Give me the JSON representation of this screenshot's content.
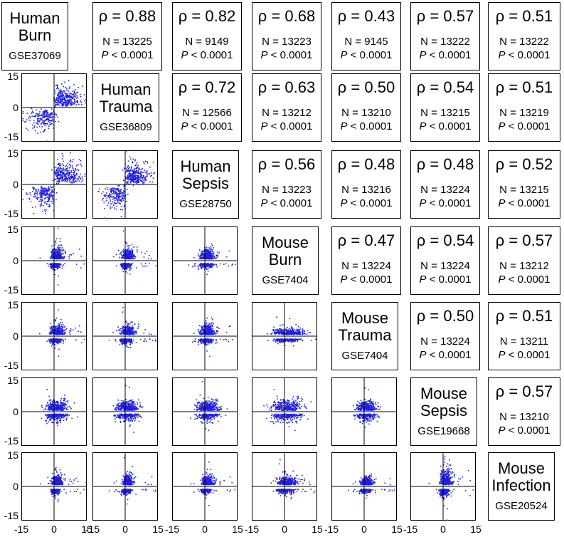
{
  "datasets": [
    {
      "name": "Human Burn",
      "name_lines": [
        "Human",
        "Burn"
      ],
      "accession": "GSE37069"
    },
    {
      "name": "Human Trauma",
      "name_lines": [
        "Human",
        "Trauma"
      ],
      "accession": "GSE36809"
    },
    {
      "name": "Human Sepsis",
      "name_lines": [
        "Human",
        "Sepsis"
      ],
      "accession": "GSE28750"
    },
    {
      "name": "Mouse Burn",
      "name_lines": [
        "Mouse",
        "Burn"
      ],
      "accession": "GSE7404"
    },
    {
      "name": "Mouse Trauma",
      "name_lines": [
        "Mouse",
        "Trauma"
      ],
      "accession": "GSE7404"
    },
    {
      "name": "Mouse Sepsis",
      "name_lines": [
        "Mouse",
        "Sepsis"
      ],
      "accession": "GSE19668"
    },
    {
      "name": "Mouse Infection",
      "name_lines": [
        "Mouse",
        "Infection"
      ],
      "accession": "GSE20524"
    }
  ],
  "correlations": [
    {
      "row": 0,
      "col": 1,
      "rho": "ρ = 0.88",
      "n": "N = 13225",
      "p": "< 0.0001"
    },
    {
      "row": 0,
      "col": 2,
      "rho": "ρ = 0.82",
      "n": "N = 9149",
      "p": "< 0.0001"
    },
    {
      "row": 0,
      "col": 3,
      "rho": "ρ = 0.68",
      "n": "N = 13223",
      "p": "< 0.0001"
    },
    {
      "row": 0,
      "col": 4,
      "rho": "ρ = 0.43",
      "n": "N = 9145",
      "p": "< 0.0001"
    },
    {
      "row": 0,
      "col": 5,
      "rho": "ρ = 0.57",
      "n": "N = 13222",
      "p": "< 0.0001"
    },
    {
      "row": 0,
      "col": 6,
      "rho": "ρ = 0.51",
      "n": "N = 13222",
      "p": "< 0.0001"
    },
    {
      "row": 1,
      "col": 2,
      "rho": "ρ = 0.72",
      "n": "N = 12566",
      "p": "< 0.0001"
    },
    {
      "row": 1,
      "col": 3,
      "rho": "ρ = 0.63",
      "n": "N = 13212",
      "p": "< 0.0001"
    },
    {
      "row": 1,
      "col": 4,
      "rho": "ρ = 0.50",
      "n": "N = 13210",
      "p": "< 0.0001"
    },
    {
      "row": 1,
      "col": 5,
      "rho": "ρ = 0.54",
      "n": "N = 13215",
      "p": "< 0.0001"
    },
    {
      "row": 1,
      "col": 6,
      "rho": "ρ = 0.51",
      "n": "N = 13219",
      "p": "< 0.0001"
    },
    {
      "row": 2,
      "col": 3,
      "rho": "ρ = 0.56",
      "n": "N = 13223",
      "p": "< 0.0001"
    },
    {
      "row": 2,
      "col": 4,
      "rho": "ρ = 0.48",
      "n": "N = 13216",
      "p": "< 0.0001"
    },
    {
      "row": 2,
      "col": 5,
      "rho": "ρ = 0.48",
      "n": "N = 13224",
      "p": "< 0.0001"
    },
    {
      "row": 2,
      "col": 6,
      "rho": "ρ = 0.52",
      "n": "N = 13215",
      "p": "< 0.0001"
    },
    {
      "row": 3,
      "col": 4,
      "rho": "ρ = 0.47",
      "n": "N = 13224",
      "p": "< 0.0001"
    },
    {
      "row": 3,
      "col": 5,
      "rho": "ρ = 0.54",
      "n": "N = 13224",
      "p": "< 0.0001"
    },
    {
      "row": 3,
      "col": 6,
      "rho": "ρ = 0.57",
      "n": "N = 13212",
      "p": "< 0.0001"
    },
    {
      "row": 4,
      "col": 5,
      "rho": "ρ = 0.50",
      "n": "N = 13224",
      "p": "< 0.0001"
    },
    {
      "row": 4,
      "col": 6,
      "rho": "ρ = 0.51",
      "n": "N = 13211",
      "p": "< 0.0001"
    },
    {
      "row": 5,
      "col": 6,
      "rho": "ρ = 0.57",
      "n": "N = 13210",
      "p": "< 0.0001"
    }
  ],
  "p_label": "P",
  "colors": {
    "points": "#1f1fe0",
    "axis": "#000000",
    "frame": "#000000"
  },
  "chart_data": {
    "type": "scatter",
    "layout": "scatterplot-matrix",
    "x_ticks": [
      "-15",
      "0",
      "15"
    ],
    "y_ticks": [
      "15",
      "0",
      "-15"
    ],
    "xlim": [
      -15,
      15
    ],
    "ylim": [
      -15,
      15
    ],
    "grid": false,
    "panels_lower_triangle": [
      {
        "row": 1,
        "col": 0,
        "shape": "diagonal",
        "spread_x": 0.32,
        "spread_y": 0.3,
        "tail_y": 0.75
      },
      {
        "row": 2,
        "col": 0,
        "shape": "diagonal",
        "spread_x": 0.34,
        "spread_y": 0.3,
        "tail_y": 0.75
      },
      {
        "row": 2,
        "col": 1,
        "shape": "diagonal",
        "spread_x": 0.3,
        "spread_y": 0.3,
        "tail_y": 0.75
      },
      {
        "row": 3,
        "col": 0,
        "shape": "vertical",
        "spread_x": 0.12,
        "spread_y": 0.28,
        "tail_y": 0.8
      },
      {
        "row": 3,
        "col": 1,
        "shape": "vertical",
        "spread_x": 0.12,
        "spread_y": 0.28,
        "tail_y": 0.8
      },
      {
        "row": 3,
        "col": 2,
        "shape": "vertical",
        "spread_x": 0.16,
        "spread_y": 0.24,
        "tail_y": 0.6
      },
      {
        "row": 4,
        "col": 0,
        "shape": "vertical",
        "spread_x": 0.14,
        "spread_y": 0.24,
        "tail_y": 0.7
      },
      {
        "row": 4,
        "col": 1,
        "shape": "vertical",
        "spread_x": 0.14,
        "spread_y": 0.24,
        "tail_y": 0.7
      },
      {
        "row": 4,
        "col": 2,
        "shape": "vertical",
        "spread_x": 0.16,
        "spread_y": 0.24,
        "tail_y": 0.7
      },
      {
        "row": 4,
        "col": 3,
        "shape": "vertical",
        "spread_x": 0.3,
        "spread_y": 0.16,
        "tail_y": 0.6
      },
      {
        "row": 5,
        "col": 0,
        "shape": "horizontal",
        "spread_x": 0.28,
        "spread_y": 0.14,
        "tail_y": 0.7
      },
      {
        "row": 5,
        "col": 1,
        "shape": "horizontal",
        "spread_x": 0.28,
        "spread_y": 0.14,
        "tail_y": 0.7
      },
      {
        "row": 5,
        "col": 2,
        "shape": "horizontal",
        "spread_x": 0.28,
        "spread_y": 0.14,
        "tail_y": 0.7
      },
      {
        "row": 5,
        "col": 3,
        "shape": "horizontal",
        "spread_x": 0.38,
        "spread_y": 0.16,
        "tail_y": 0.6
      },
      {
        "row": 5,
        "col": 4,
        "shape": "horizontal",
        "spread_x": 0.26,
        "spread_y": 0.14,
        "tail_y": 0.6
      },
      {
        "row": 6,
        "col": 0,
        "shape": "vertical",
        "spread_x": 0.1,
        "spread_y": 0.24,
        "tail_y": 0.9
      },
      {
        "row": 6,
        "col": 1,
        "shape": "vertical",
        "spread_x": 0.1,
        "spread_y": 0.24,
        "tail_y": 0.9
      },
      {
        "row": 6,
        "col": 2,
        "shape": "vertical",
        "spread_x": 0.12,
        "spread_y": 0.22,
        "tail_y": 0.7
      },
      {
        "row": 6,
        "col": 3,
        "shape": "vertical",
        "spread_x": 0.2,
        "spread_y": 0.22,
        "tail_y": 0.7
      },
      {
        "row": 6,
        "col": 4,
        "shape": "vertical",
        "spread_x": 0.12,
        "spread_y": 0.18,
        "tail_y": 0.6
      },
      {
        "row": 6,
        "col": 5,
        "shape": "vertical",
        "spread_x": 0.12,
        "spread_y": 0.4,
        "tail_y": 1.0
      }
    ]
  }
}
